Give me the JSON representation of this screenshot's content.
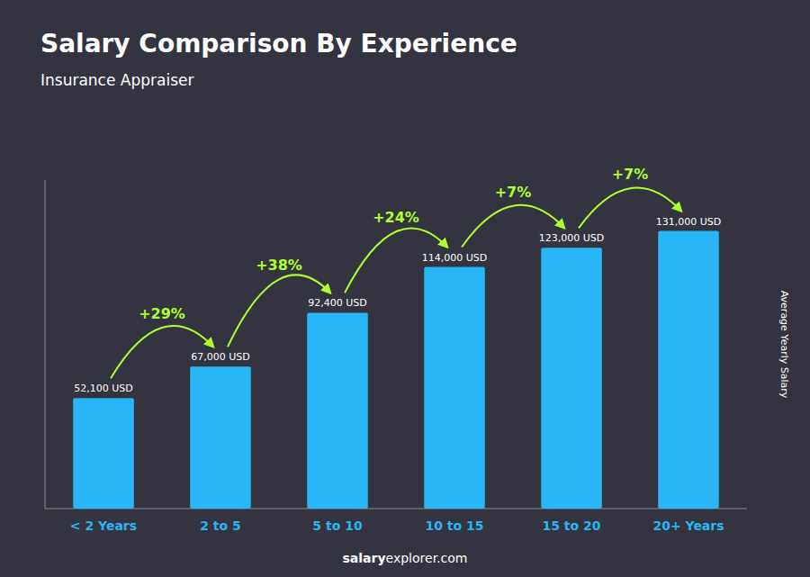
{
  "chart_data": {
    "type": "bar",
    "title": "Salary Comparison By Experience",
    "subtitle": "Insurance Appraiser",
    "y_label": "Average Yearly Salary",
    "categories": [
      "< 2 Years",
      "2 to 5",
      "5 to 10",
      "10 to 15",
      "15 to 20",
      "20+ Years"
    ],
    "values": [
      52100,
      67000,
      92400,
      114000,
      123000,
      131000
    ],
    "value_labels": [
      "52,100 USD",
      "67,000 USD",
      "92,400 USD",
      "114,000 USD",
      "123,000 USD",
      "131,000 USD"
    ],
    "data_labels": true,
    "annotations": [
      "+29%",
      "+38%",
      "+24%",
      "+7%",
      "+7%"
    ],
    "footer": [
      "salary",
      "explorer.com"
    ],
    "color": "#29B6F6",
    "ylim": [
      0,
      155000
    ],
    "tick_labels": "x",
    "grid": false
  }
}
